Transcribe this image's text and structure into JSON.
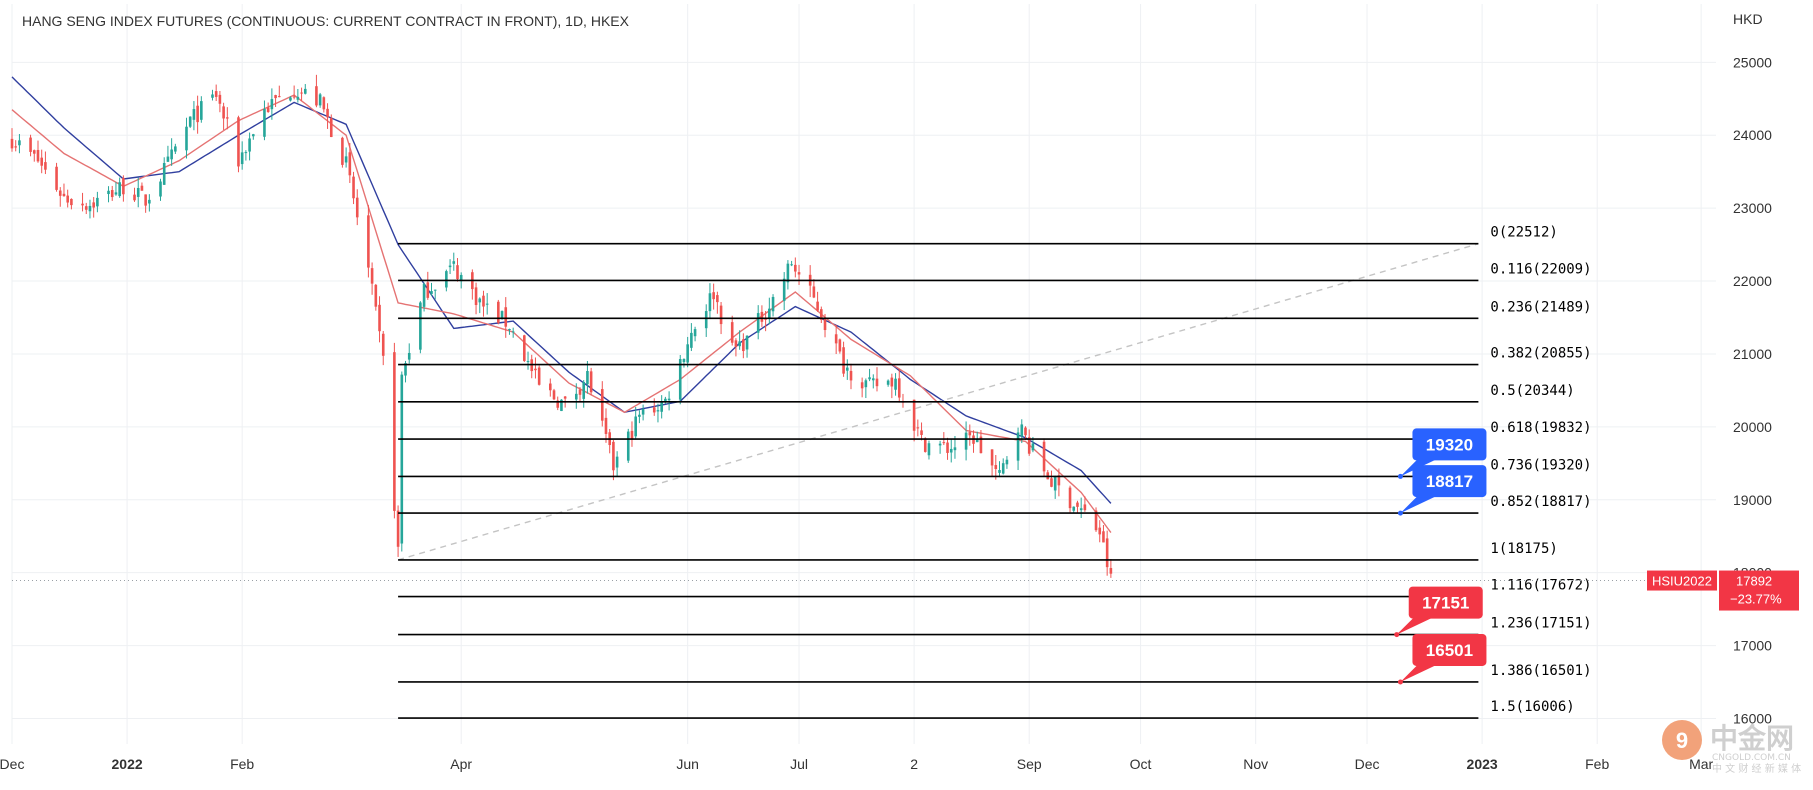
{
  "chart_data": {
    "type": "candlestick",
    "title": "HANG SENG INDEX FUTURES (CONTINUOUS: CURRENT CONTRACT IN FRONT), 1D, HKEX",
    "currency": "HKD",
    "ylim": [
      15650,
      25800
    ],
    "y_ticks": [
      16000,
      17000,
      18000,
      19000,
      20000,
      21000,
      22000,
      23000,
      24000,
      25000
    ],
    "x_domain": [
      "2021-12-01",
      "2023-03-05"
    ],
    "x_ticks": [
      {
        "date": "2021-12-01",
        "label": "Dec",
        "bold": false
      },
      {
        "date": "2022-01-01",
        "label": "2022",
        "bold": true
      },
      {
        "date": "2022-02-01",
        "label": "Feb",
        "bold": false
      },
      {
        "date": "2022-04-01",
        "label": "Apr",
        "bold": false
      },
      {
        "date": "2022-06-01",
        "label": "Jun",
        "bold": false
      },
      {
        "date": "2022-07-01",
        "label": "Jul",
        "bold": false
      },
      {
        "date": "2022-08-01",
        "label": "2",
        "bold": false
      },
      {
        "date": "2022-09-01",
        "label": "Sep",
        "bold": false
      },
      {
        "date": "2022-10-01",
        "label": "Oct",
        "bold": false
      },
      {
        "date": "2022-11-01",
        "label": "Nov",
        "bold": false
      },
      {
        "date": "2022-12-01",
        "label": "Dec",
        "bold": false
      },
      {
        "date": "2023-01-01",
        "label": "2023",
        "bold": true
      },
      {
        "date": "2023-02-01",
        "label": "Feb",
        "bold": false
      },
      {
        "date": "2023-03-01",
        "label": "Mar",
        "bold": false
      }
    ],
    "price_anchors": [
      [
        "2021-12-01",
        23950
      ],
      [
        "2021-12-08",
        23650
      ],
      [
        "2021-12-15",
        23150
      ],
      [
        "2021-12-22",
        23050
      ],
      [
        "2021-12-31",
        23300
      ],
      [
        "2022-01-06",
        23100
      ],
      [
        "2022-01-12",
        23600
      ],
      [
        "2022-01-18",
        24200
      ],
      [
        "2022-01-25",
        24550
      ],
      [
        "2022-01-31",
        23650
      ],
      [
        "2022-02-07",
        24350
      ],
      [
        "2022-02-15",
        24650
      ],
      [
        "2022-02-22",
        24450
      ],
      [
        "2022-03-01",
        23600
      ],
      [
        "2022-03-07",
        22150
      ],
      [
        "2022-03-11",
        20900
      ],
      [
        "2022-03-15",
        18300
      ],
      [
        "2022-03-16",
        20700
      ],
      [
        "2022-03-22",
        21850
      ],
      [
        "2022-03-30",
        22200
      ],
      [
        "2022-04-07",
        21650
      ],
      [
        "2022-04-14",
        21400
      ],
      [
        "2022-04-22",
        20550
      ],
      [
        "2022-04-29",
        20300
      ],
      [
        "2022-05-05",
        20700
      ],
      [
        "2022-05-12",
        19450
      ],
      [
        "2022-05-19",
        20150
      ],
      [
        "2022-05-26",
        20350
      ],
      [
        "2022-06-02",
        21300
      ],
      [
        "2022-06-08",
        21850
      ],
      [
        "2022-06-13",
        21050
      ],
      [
        "2022-06-17",
        21200
      ],
      [
        "2022-06-24",
        21750
      ],
      [
        "2022-06-29",
        22250
      ],
      [
        "2022-07-06",
        21650
      ],
      [
        "2022-07-13",
        20850
      ],
      [
        "2022-07-20",
        20550
      ],
      [
        "2022-07-27",
        20650
      ],
      [
        "2022-08-03",
        19800
      ],
      [
        "2022-08-10",
        19700
      ],
      [
        "2022-08-17",
        19850
      ],
      [
        "2022-08-24",
        19300
      ],
      [
        "2022-08-29",
        20050
      ],
      [
        "2022-09-02",
        19650
      ],
      [
        "2022-09-07",
        19250
      ],
      [
        "2022-09-13",
        18950
      ],
      [
        "2022-09-16",
        18800
      ],
      [
        "2022-09-20",
        18550
      ],
      [
        "2022-09-23",
        17900
      ]
    ],
    "ma_fast_anchors": [
      [
        "2021-12-01",
        24350
      ],
      [
        "2021-12-15",
        23750
      ],
      [
        "2021-12-31",
        23300
      ],
      [
        "2022-01-15",
        23650
      ],
      [
        "2022-01-31",
        24200
      ],
      [
        "2022-02-15",
        24550
      ],
      [
        "2022-03-01",
        24000
      ],
      [
        "2022-03-15",
        21700
      ],
      [
        "2022-03-30",
        21550
      ],
      [
        "2022-04-15",
        21300
      ],
      [
        "2022-04-30",
        20600
      ],
      [
        "2022-05-15",
        20200
      ],
      [
        "2022-05-30",
        20650
      ],
      [
        "2022-06-15",
        21300
      ],
      [
        "2022-06-30",
        21850
      ],
      [
        "2022-07-15",
        21200
      ],
      [
        "2022-07-31",
        20700
      ],
      [
        "2022-08-15",
        19950
      ],
      [
        "2022-08-31",
        19800
      ],
      [
        "2022-09-15",
        19100
      ],
      [
        "2022-09-23",
        18550
      ]
    ],
    "ma_slow_anchors": [
      [
        "2021-12-01",
        24800
      ],
      [
        "2021-12-15",
        24100
      ],
      [
        "2021-12-31",
        23400
      ],
      [
        "2022-01-15",
        23500
      ],
      [
        "2022-01-31",
        24000
      ],
      [
        "2022-02-15",
        24450
      ],
      [
        "2022-03-01",
        24150
      ],
      [
        "2022-03-15",
        22500
      ],
      [
        "2022-03-30",
        21350
      ],
      [
        "2022-04-15",
        21450
      ],
      [
        "2022-04-30",
        20750
      ],
      [
        "2022-05-15",
        20200
      ],
      [
        "2022-05-30",
        20350
      ],
      [
        "2022-06-15",
        21150
      ],
      [
        "2022-06-30",
        21650
      ],
      [
        "2022-07-15",
        21300
      ],
      [
        "2022-07-31",
        20650
      ],
      [
        "2022-08-15",
        20150
      ],
      [
        "2022-08-31",
        19850
      ],
      [
        "2022-09-15",
        19400
      ],
      [
        "2022-09-23",
        18950
      ]
    ],
    "candle_start": "2021-12-01",
    "candle_end": "2022-09-23",
    "trend_line": {
      "from": [
        "2022-03-15",
        18175
      ],
      "to": [
        "2022-12-31",
        22512
      ]
    },
    "fib_levels": {
      "start_date": "2022-03-15",
      "end_date": "2022-12-31",
      "levels": [
        {
          "ratio": "0",
          "value": 22512,
          "label": "0(22512)"
        },
        {
          "ratio": "0.116",
          "value": 22009,
          "label": "0.116(22009)"
        },
        {
          "ratio": "0.236",
          "value": 21489,
          "label": "0.236(21489)"
        },
        {
          "ratio": "0.382",
          "value": 20855,
          "label": "0.382(20855)"
        },
        {
          "ratio": "0.5",
          "value": 20344,
          "label": "0.5(20344)"
        },
        {
          "ratio": "0.618",
          "value": 19832,
          "label": "0.618(19832)"
        },
        {
          "ratio": "0.736",
          "value": 19320,
          "label": "0.736(19320)"
        },
        {
          "ratio": "0.852",
          "value": 18817,
          "label": "0.852(18817)"
        },
        {
          "ratio": "1",
          "value": 18175,
          "label": "1(18175)"
        },
        {
          "ratio": "1.116",
          "value": 17672,
          "label": "1.116(17672)"
        },
        {
          "ratio": "1.236",
          "value": 17151,
          "label": "1.236(17151)"
        },
        {
          "ratio": "1.386",
          "value": 16501,
          "label": "1.386(16501)"
        },
        {
          "ratio": "1.5",
          "value": 16006,
          "label": "1.5(16006)"
        }
      ]
    },
    "targets": [
      {
        "label": "19320",
        "value": 19320,
        "date": "2022-12-10",
        "color": "#2962ff"
      },
      {
        "label": "18817",
        "value": 18817,
        "date": "2022-12-10",
        "color": "#2962ff"
      },
      {
        "label": "17151",
        "value": 17151,
        "date": "2022-12-09",
        "color": "#f23645"
      },
      {
        "label": "16501",
        "value": 16501,
        "date": "2022-12-10",
        "color": "#f23645"
      }
    ],
    "last_price": {
      "symbol": "HSIU2022",
      "price": "17892",
      "change": "−23.77%",
      "value": 17892
    }
  },
  "colors": {
    "up": "#26a69a",
    "down": "#ef5350",
    "ma_fast": "#e57373",
    "ma_slow": "#303f9f",
    "grid": "#eef0f3",
    "price_tag": "#f23645"
  },
  "watermark": {
    "brand": "中金网",
    "site": "CNGOLD.COM.CN",
    "tagline": "中 文 财 经 新 媒 体"
  }
}
